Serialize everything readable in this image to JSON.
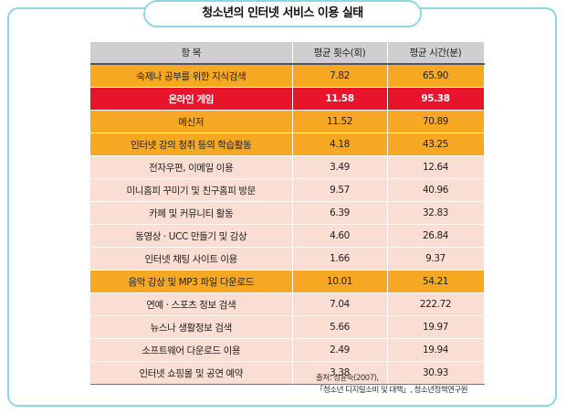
{
  "title": "청소년의 인터넷 서비스 이용 실태",
  "table": {
    "headers": [
      "항  목",
      "평균 횟수(회)",
      "평균 시간(분)"
    ],
    "rows": [
      {
        "item": "숙제나 공부를 위한 지식검색",
        "count": "7.82",
        "time": "65.90",
        "style": "orange"
      },
      {
        "item": "온라인 게임",
        "count": "11.58",
        "time": "95.38",
        "style": "red"
      },
      {
        "item": "메신저",
        "count": "11.52",
        "time": "70.89",
        "style": "orange"
      },
      {
        "item": "인터넷 강의 청취 등의 학습활동",
        "count": "4.18",
        "time": "43.25",
        "style": "orange"
      },
      {
        "item": "전자우편, 이메일 이용",
        "count": "3.49",
        "time": "12.64",
        "style": "pink"
      },
      {
        "item": "미니홈피 꾸미기 및 친구홈피 방문",
        "count": "9.57",
        "time": "40.96",
        "style": "pink"
      },
      {
        "item": "카페 및 커뮤니티 활동",
        "count": "6.39",
        "time": "32.83",
        "style": "pink"
      },
      {
        "item": "동영상 · UCC 만들기 및 감상",
        "count": "4.60",
        "time": "26.84",
        "style": "pink"
      },
      {
        "item": "인터넷 채팅 사이트 이용",
        "count": "1.66",
        "time": "9.37",
        "style": "pink"
      },
      {
        "item": "음악 감상 및 MP3 파일 다운로드",
        "count": "10.01",
        "time": "54.21",
        "style": "orange"
      },
      {
        "item": "연예 · 스포츠 정보 검색",
        "count": "7.04",
        "time": "222.72",
        "style": "pink"
      },
      {
        "item": "뉴스나 생활정보 검색",
        "count": "5.66",
        "time": "19.97",
        "style": "pink"
      },
      {
        "item": "소프트웨어 다운로드 이용",
        "count": "2.49",
        "time": "19.94",
        "style": "pink"
      },
      {
        "item": "인터넷 쇼핑몰 및 공연 예약",
        "count": "3.38",
        "time": "30.93",
        "style": "pink"
      }
    ]
  },
  "source": {
    "line1": "출처: 성윤숙(2007),",
    "line2": "「청소년 디지털소비 및 대책」, 청소년정책연구원"
  },
  "colors": {
    "frame_border": "#8ed7df",
    "header_bg": "#cfcfcf",
    "orange": "#f7a823",
    "pink": "#fbded3",
    "red": "#e8142c"
  }
}
